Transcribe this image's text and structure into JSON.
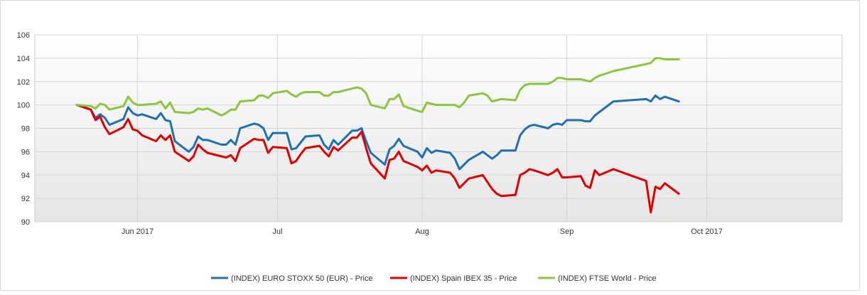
{
  "chart_data": {
    "type": "line",
    "title": "",
    "xlabel": "",
    "ylabel": "",
    "ylim": [
      90,
      106
    ],
    "yticks": [
      90,
      92,
      94,
      96,
      98,
      100,
      102,
      104,
      106
    ],
    "xlim": [
      "2017-05-10",
      "2017-10-30"
    ],
    "xticks": [
      {
        "date": "2017-06-01",
        "label": "Jun 2017"
      },
      {
        "date": "2017-07-01",
        "label": "Jul"
      },
      {
        "date": "2017-08-01",
        "label": "Aug"
      },
      {
        "date": "2017-09-01",
        "label": "Sep"
      },
      {
        "date": "2017-10-01",
        "label": "Oct 2017"
      }
    ],
    "grid": true,
    "legend_position": "bottom",
    "series": [
      {
        "name": "(INDEX) EURO STOXX 50 (EUR) - Price",
        "color": "#1f6fb5",
        "points": [
          [
            "2017-05-19",
            100.0
          ],
          [
            "2017-05-22",
            99.6
          ],
          [
            "2017-05-23",
            98.9
          ],
          [
            "2017-05-24",
            99.2
          ],
          [
            "2017-05-25",
            98.9
          ],
          [
            "2017-05-26",
            98.3
          ],
          [
            "2017-05-29",
            98.8
          ],
          [
            "2017-05-30",
            99.8
          ],
          [
            "2017-05-31",
            99.3
          ],
          [
            "2017-06-01",
            99.1
          ],
          [
            "2017-06-02",
            99.2
          ],
          [
            "2017-06-05",
            98.8
          ],
          [
            "2017-06-06",
            99.3
          ],
          [
            "2017-06-07",
            98.7
          ],
          [
            "2017-06-08",
            98.6
          ],
          [
            "2017-06-09",
            96.9
          ],
          [
            "2017-06-12",
            96.0
          ],
          [
            "2017-06-13",
            96.4
          ],
          [
            "2017-06-14",
            97.3
          ],
          [
            "2017-06-15",
            97.0
          ],
          [
            "2017-06-16",
            97.0
          ],
          [
            "2017-06-19",
            96.6
          ],
          [
            "2017-06-20",
            96.6
          ],
          [
            "2017-06-21",
            97.0
          ],
          [
            "2017-06-22",
            96.6
          ],
          [
            "2017-06-23",
            98.0
          ],
          [
            "2017-06-26",
            98.4
          ],
          [
            "2017-06-27",
            98.3
          ],
          [
            "2017-06-28",
            98.0
          ],
          [
            "2017-06-29",
            97.0
          ],
          [
            "2017-06-30",
            97.6
          ],
          [
            "2017-07-03",
            97.6
          ],
          [
            "2017-07-04",
            96.2
          ],
          [
            "2017-07-05",
            96.3
          ],
          [
            "2017-07-06",
            96.8
          ],
          [
            "2017-07-07",
            97.3
          ],
          [
            "2017-07-10",
            97.4
          ],
          [
            "2017-07-11",
            96.6
          ],
          [
            "2017-07-12",
            96.2
          ],
          [
            "2017-07-13",
            97.0
          ],
          [
            "2017-07-14",
            96.6
          ],
          [
            "2017-07-17",
            97.8
          ],
          [
            "2017-07-18",
            97.8
          ],
          [
            "2017-07-19",
            98.0
          ],
          [
            "2017-07-20",
            96.9
          ],
          [
            "2017-07-21",
            95.9
          ],
          [
            "2017-07-24",
            94.9
          ],
          [
            "2017-07-25",
            96.2
          ],
          [
            "2017-07-26",
            96.5
          ],
          [
            "2017-07-27",
            97.1
          ],
          [
            "2017-07-28",
            96.5
          ],
          [
            "2017-07-31",
            96.0
          ],
          [
            "2017-08-01",
            95.5
          ],
          [
            "2017-08-02",
            96.3
          ],
          [
            "2017-08-03",
            95.9
          ],
          [
            "2017-08-04",
            96.1
          ],
          [
            "2017-08-07",
            95.9
          ],
          [
            "2017-08-08",
            95.4
          ],
          [
            "2017-08-09",
            94.5
          ],
          [
            "2017-08-10",
            94.9
          ],
          [
            "2017-08-11",
            95.3
          ],
          [
            "2017-08-14",
            96.0
          ],
          [
            "2017-08-15",
            95.7
          ],
          [
            "2017-08-16",
            95.4
          ],
          [
            "2017-08-17",
            95.7
          ],
          [
            "2017-08-18",
            96.1
          ],
          [
            "2017-08-21",
            96.1
          ],
          [
            "2017-08-22",
            97.4
          ],
          [
            "2017-08-23",
            97.9
          ],
          [
            "2017-08-24",
            98.2
          ],
          [
            "2017-08-25",
            98.3
          ],
          [
            "2017-08-28",
            98.0
          ],
          [
            "2017-08-29",
            98.3
          ],
          [
            "2017-08-30",
            98.4
          ],
          [
            "2017-08-31",
            98.3
          ],
          [
            "2017-09-01",
            98.7
          ],
          [
            "2017-09-04",
            98.7
          ],
          [
            "2017-09-05",
            98.6
          ],
          [
            "2017-09-06",
            98.6
          ],
          [
            "2017-09-07",
            99.1
          ],
          [
            "2017-09-08",
            99.4
          ],
          [
            "2017-09-11",
            100.3
          ],
          [
            "2017-09-18",
            100.5
          ],
          [
            "2017-09-19",
            100.3
          ],
          [
            "2017-09-20",
            100.8
          ],
          [
            "2017-09-21",
            100.5
          ],
          [
            "2017-09-22",
            100.7
          ],
          [
            "2017-09-25",
            100.3
          ]
        ]
      },
      {
        "name": "(INDEX) Spain IBEX 35 - Price",
        "color": "#e00000",
        "points": [
          [
            "2017-05-19",
            100.0
          ],
          [
            "2017-05-22",
            99.6
          ],
          [
            "2017-05-23",
            98.7
          ],
          [
            "2017-05-24",
            99.0
          ],
          [
            "2017-05-25",
            98.1
          ],
          [
            "2017-05-26",
            97.5
          ],
          [
            "2017-05-29",
            98.1
          ],
          [
            "2017-05-30",
            98.8
          ],
          [
            "2017-05-31",
            97.9
          ],
          [
            "2017-06-01",
            97.8
          ],
          [
            "2017-06-02",
            97.4
          ],
          [
            "2017-06-05",
            96.9
          ],
          [
            "2017-06-06",
            97.4
          ],
          [
            "2017-06-07",
            97.0
          ],
          [
            "2017-06-08",
            97.4
          ],
          [
            "2017-06-09",
            96.0
          ],
          [
            "2017-06-12",
            95.2
          ],
          [
            "2017-06-13",
            95.6
          ],
          [
            "2017-06-14",
            96.6
          ],
          [
            "2017-06-15",
            96.2
          ],
          [
            "2017-06-16",
            95.9
          ],
          [
            "2017-06-19",
            95.6
          ],
          [
            "2017-06-20",
            95.5
          ],
          [
            "2017-06-21",
            95.7
          ],
          [
            "2017-06-22",
            95.2
          ],
          [
            "2017-06-23",
            96.3
          ],
          [
            "2017-06-26",
            97.1
          ],
          [
            "2017-06-27",
            97.0
          ],
          [
            "2017-06-28",
            97.0
          ],
          [
            "2017-06-29",
            95.9
          ],
          [
            "2017-06-30",
            96.4
          ],
          [
            "2017-07-03",
            96.3
          ],
          [
            "2017-07-04",
            95.0
          ],
          [
            "2017-07-05",
            95.2
          ],
          [
            "2017-07-06",
            95.8
          ],
          [
            "2017-07-07",
            96.3
          ],
          [
            "2017-07-10",
            96.5
          ],
          [
            "2017-07-11",
            96.0
          ],
          [
            "2017-07-12",
            95.6
          ],
          [
            "2017-07-13",
            96.4
          ],
          [
            "2017-07-14",
            96.1
          ],
          [
            "2017-07-17",
            97.2
          ],
          [
            "2017-07-18",
            97.2
          ],
          [
            "2017-07-19",
            97.7
          ],
          [
            "2017-07-20",
            96.3
          ],
          [
            "2017-07-21",
            95.0
          ],
          [
            "2017-07-24",
            93.7
          ],
          [
            "2017-07-25",
            95.3
          ],
          [
            "2017-07-26",
            95.4
          ],
          [
            "2017-07-27",
            96.0
          ],
          [
            "2017-07-28",
            95.2
          ],
          [
            "2017-07-31",
            94.7
          ],
          [
            "2017-08-01",
            94.4
          ],
          [
            "2017-08-02",
            94.8
          ],
          [
            "2017-08-03",
            94.2
          ],
          [
            "2017-08-04",
            94.4
          ],
          [
            "2017-08-07",
            94.2
          ],
          [
            "2017-08-08",
            93.7
          ],
          [
            "2017-08-09",
            92.9
          ],
          [
            "2017-08-10",
            93.3
          ],
          [
            "2017-08-11",
            93.7
          ],
          [
            "2017-08-14",
            94.0
          ],
          [
            "2017-08-15",
            93.4
          ],
          [
            "2017-08-16",
            92.8
          ],
          [
            "2017-08-17",
            92.4
          ],
          [
            "2017-08-18",
            92.2
          ],
          [
            "2017-08-21",
            92.3
          ],
          [
            "2017-08-22",
            94.0
          ],
          [
            "2017-08-23",
            94.2
          ],
          [
            "2017-08-24",
            94.5
          ],
          [
            "2017-08-25",
            94.4
          ],
          [
            "2017-08-28",
            94.0
          ],
          [
            "2017-08-29",
            94.2
          ],
          [
            "2017-08-30",
            94.5
          ],
          [
            "2017-08-31",
            93.8
          ],
          [
            "2017-09-01",
            93.8
          ],
          [
            "2017-09-04",
            93.9
          ],
          [
            "2017-09-05",
            93.1
          ],
          [
            "2017-09-06",
            92.9
          ],
          [
            "2017-09-07",
            94.4
          ],
          [
            "2017-09-08",
            94.0
          ],
          [
            "2017-09-11",
            94.5
          ],
          [
            "2017-09-18",
            93.5
          ],
          [
            "2017-09-19",
            90.8
          ],
          [
            "2017-09-20",
            93.0
          ],
          [
            "2017-09-21",
            92.8
          ],
          [
            "2017-09-22",
            93.3
          ],
          [
            "2017-09-25",
            92.4
          ]
        ]
      },
      {
        "name": "(INDEX) FTSE World - Price",
        "color": "#8cc63f",
        "points": [
          [
            "2017-05-19",
            100.0
          ],
          [
            "2017-05-22",
            99.9
          ],
          [
            "2017-05-23",
            99.7
          ],
          [
            "2017-05-24",
            100.1
          ],
          [
            "2017-05-25",
            100.0
          ],
          [
            "2017-05-26",
            99.6
          ],
          [
            "2017-05-29",
            99.9
          ],
          [
            "2017-05-30",
            100.7
          ],
          [
            "2017-05-31",
            100.2
          ],
          [
            "2017-06-01",
            100.0
          ],
          [
            "2017-06-02",
            100.0
          ],
          [
            "2017-06-05",
            100.1
          ],
          [
            "2017-06-06",
            100.3
          ],
          [
            "2017-06-07",
            99.7
          ],
          [
            "2017-06-08",
            100.2
          ],
          [
            "2017-06-09",
            99.4
          ],
          [
            "2017-06-12",
            99.3
          ],
          [
            "2017-06-13",
            99.4
          ],
          [
            "2017-06-14",
            99.7
          ],
          [
            "2017-06-15",
            99.6
          ],
          [
            "2017-06-16",
            99.7
          ],
          [
            "2017-06-19",
            99.1
          ],
          [
            "2017-06-20",
            99.3
          ],
          [
            "2017-06-21",
            99.6
          ],
          [
            "2017-06-22",
            99.6
          ],
          [
            "2017-06-23",
            100.3
          ],
          [
            "2017-06-26",
            100.4
          ],
          [
            "2017-06-27",
            100.8
          ],
          [
            "2017-06-28",
            100.8
          ],
          [
            "2017-06-29",
            100.6
          ],
          [
            "2017-06-30",
            101.0
          ],
          [
            "2017-07-03",
            101.2
          ],
          [
            "2017-07-04",
            100.9
          ],
          [
            "2017-07-05",
            100.7
          ],
          [
            "2017-07-06",
            101.0
          ],
          [
            "2017-07-07",
            101.1
          ],
          [
            "2017-07-10",
            101.1
          ],
          [
            "2017-07-11",
            100.8
          ],
          [
            "2017-07-12",
            100.8
          ],
          [
            "2017-07-13",
            101.1
          ],
          [
            "2017-07-14",
            101.1
          ],
          [
            "2017-07-17",
            101.4
          ],
          [
            "2017-07-18",
            101.5
          ],
          [
            "2017-07-19",
            101.4
          ],
          [
            "2017-07-20",
            101.0
          ],
          [
            "2017-07-21",
            100.0
          ],
          [
            "2017-07-24",
            99.7
          ],
          [
            "2017-07-25",
            100.5
          ],
          [
            "2017-07-26",
            100.5
          ],
          [
            "2017-07-27",
            100.9
          ],
          [
            "2017-07-28",
            99.9
          ],
          [
            "2017-07-31",
            99.5
          ],
          [
            "2017-08-01",
            99.4
          ],
          [
            "2017-08-02",
            100.2
          ],
          [
            "2017-08-03",
            100.1
          ],
          [
            "2017-08-04",
            100.0
          ],
          [
            "2017-08-07",
            100.0
          ],
          [
            "2017-08-08",
            100.0
          ],
          [
            "2017-08-09",
            99.8
          ],
          [
            "2017-08-10",
            100.2
          ],
          [
            "2017-08-11",
            100.8
          ],
          [
            "2017-08-14",
            101.0
          ],
          [
            "2017-08-15",
            100.8
          ],
          [
            "2017-08-16",
            100.3
          ],
          [
            "2017-08-17",
            100.4
          ],
          [
            "2017-08-18",
            100.5
          ],
          [
            "2017-08-21",
            100.4
          ],
          [
            "2017-08-22",
            101.3
          ],
          [
            "2017-08-23",
            101.7
          ],
          [
            "2017-08-24",
            101.8
          ],
          [
            "2017-08-25",
            101.8
          ],
          [
            "2017-08-28",
            101.8
          ],
          [
            "2017-08-29",
            102.0
          ],
          [
            "2017-08-30",
            102.3
          ],
          [
            "2017-08-31",
            102.3
          ],
          [
            "2017-09-01",
            102.2
          ],
          [
            "2017-09-04",
            102.2
          ],
          [
            "2017-09-05",
            102.1
          ],
          [
            "2017-09-06",
            102.0
          ],
          [
            "2017-09-07",
            102.3
          ],
          [
            "2017-09-08",
            102.5
          ],
          [
            "2017-09-11",
            102.9
          ],
          [
            "2017-09-18",
            103.5
          ],
          [
            "2017-09-19",
            103.6
          ],
          [
            "2017-09-20",
            104.0
          ],
          [
            "2017-09-21",
            104.0
          ],
          [
            "2017-09-22",
            103.9
          ],
          [
            "2017-09-25",
            103.9
          ]
        ]
      }
    ]
  }
}
